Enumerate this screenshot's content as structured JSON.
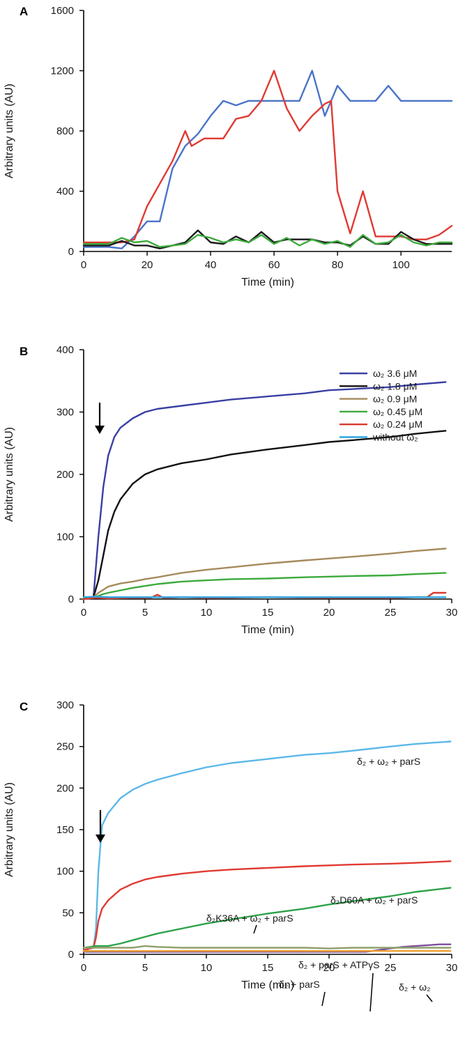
{
  "chart_data": [
    {
      "panel": "A",
      "type": "line",
      "ylabel": "Arbitrary units (AU)",
      "xlabel": "Time (min)",
      "xlim": [
        0,
        116
      ],
      "ylim": [
        0,
        1600
      ],
      "xticks": [
        0,
        20,
        40,
        60,
        80,
        100
      ],
      "yticks": [
        0,
        400,
        800,
        1200,
        1600
      ],
      "grid": false,
      "series": [
        {
          "color": "#4a74c9",
          "x": [
            0,
            8,
            12,
            16,
            20,
            24,
            28,
            32,
            36,
            40,
            44,
            48,
            52,
            56,
            60,
            64,
            68,
            72,
            76,
            80,
            84,
            88,
            92,
            96,
            100,
            104,
            108,
            112,
            116
          ],
          "y": [
            30,
            30,
            20,
            100,
            200,
            200,
            550,
            700,
            780,
            900,
            1000,
            970,
            1000,
            1000,
            1000,
            1000,
            1000,
            1200,
            900,
            1100,
            1000,
            1000,
            1000,
            1100,
            1000,
            1000,
            1000,
            1000,
            1000
          ]
        },
        {
          "color": "#e03a32",
          "x": [
            0,
            8,
            12,
            16,
            20,
            24,
            28,
            32,
            34,
            38,
            44,
            48,
            52,
            56,
            60,
            64,
            68,
            72,
            76,
            78,
            80,
            84,
            88,
            92,
            96,
            100,
            104,
            108,
            112,
            116
          ],
          "y": [
            60,
            60,
            60,
            80,
            300,
            450,
            600,
            800,
            700,
            750,
            750,
            880,
            900,
            1000,
            1200,
            950,
            800,
            900,
            980,
            1000,
            400,
            120,
            400,
            100,
            100,
            100,
            80,
            80,
            110,
            170
          ]
        },
        {
          "color": "#1a1a1a",
          "x": [
            0,
            8,
            12,
            16,
            20,
            24,
            28,
            32,
            36,
            40,
            44,
            48,
            52,
            56,
            60,
            64,
            68,
            72,
            76,
            80,
            84,
            88,
            92,
            96,
            100,
            104,
            108,
            112,
            116
          ],
          "y": [
            40,
            40,
            70,
            40,
            40,
            20,
            40,
            60,
            140,
            60,
            50,
            100,
            60,
            130,
            60,
            80,
            80,
            80,
            60,
            60,
            40,
            100,
            50,
            50,
            130,
            80,
            50,
            50,
            50
          ]
        },
        {
          "color": "#3caa3c",
          "x": [
            0,
            8,
            12,
            16,
            20,
            24,
            28,
            32,
            36,
            40,
            44,
            48,
            52,
            56,
            60,
            64,
            68,
            72,
            76,
            80,
            84,
            88,
            92,
            96,
            100,
            104,
            108,
            112,
            116
          ],
          "y": [
            50,
            50,
            90,
            60,
            70,
            30,
            40,
            50,
            110,
            90,
            60,
            80,
            60,
            110,
            50,
            90,
            40,
            80,
            50,
            70,
            30,
            110,
            50,
            60,
            110,
            60,
            40,
            60,
            60
          ]
        }
      ]
    },
    {
      "panel": "B",
      "type": "line",
      "ylabel": "Arbitrary units (AU)",
      "xlabel": "Time (min)",
      "xlim": [
        0,
        30
      ],
      "ylim": [
        0,
        400
      ],
      "xticks": [
        0,
        5,
        10,
        15,
        20,
        25,
        30
      ],
      "yticks": [
        0,
        100,
        200,
        300,
        400
      ],
      "grid": false,
      "legend_position": "right",
      "series": [
        {
          "name": "ω₂ 3.6 μM",
          "color": "#3a3fa3",
          "x": [
            0,
            0.8,
            1.2,
            1.6,
            2,
            2.5,
            3,
            4,
            5,
            6,
            8,
            10,
            12,
            15,
            18,
            20,
            22,
            25,
            27,
            29.5
          ],
          "y": [
            0,
            3,
            100,
            180,
            230,
            260,
            275,
            290,
            300,
            305,
            310,
            315,
            320,
            325,
            330,
            335,
            337,
            340,
            344,
            348
          ]
        },
        {
          "name": "ω₂ 1.8 μM",
          "color": "#111111",
          "x": [
            0,
            0.8,
            1.2,
            1.6,
            2,
            2.5,
            3,
            4,
            5,
            6,
            8,
            10,
            12,
            15,
            18,
            20,
            22,
            25,
            27,
            29.5
          ],
          "y": [
            0,
            3,
            30,
            70,
            110,
            140,
            160,
            185,
            200,
            208,
            218,
            224,
            232,
            240,
            247,
            252,
            255,
            260,
            265,
            270
          ]
        },
        {
          "name": "ω₂ 0.9 μM",
          "color": "#a58a5c",
          "x": [
            0,
            0.8,
            1.2,
            1.6,
            2,
            3,
            4,
            5,
            6,
            8,
            10,
            12,
            15,
            18,
            20,
            22,
            25,
            27,
            29.5
          ],
          "y": [
            0,
            3,
            10,
            15,
            20,
            25,
            28,
            32,
            35,
            42,
            47,
            51,
            57,
            62,
            65,
            68,
            73,
            77,
            81
          ]
        },
        {
          "name": "ω₂ 0.45 μM",
          "color": "#3caa3c",
          "x": [
            0,
            0.8,
            1.2,
            1.6,
            2,
            3,
            4,
            5,
            6,
            8,
            10,
            12,
            15,
            18,
            20,
            22,
            25,
            27,
            29.5
          ],
          "y": [
            0,
            2,
            5,
            8,
            10,
            14,
            18,
            21,
            24,
            28,
            30,
            32,
            33,
            35,
            36,
            37,
            38,
            40,
            42
          ]
        },
        {
          "name": "ω₂ 0.24 μM",
          "color": "#d93a2e",
          "x": [
            0,
            1,
            2,
            4,
            5.5,
            6,
            6.5,
            8,
            10,
            15,
            20,
            25,
            27,
            28,
            28.5,
            29.5
          ],
          "y": [
            0,
            2,
            1,
            2,
            2,
            7,
            2,
            3,
            2,
            3,
            2,
            2,
            3,
            3,
            10,
            10
          ]
        },
        {
          "name": "without ω₂",
          "color": "#2aa5e0",
          "x": [
            0,
            1,
            2,
            5,
            10,
            15,
            20,
            25,
            29.5
          ],
          "y": [
            3,
            4,
            3,
            3,
            3,
            3,
            3,
            3,
            3
          ]
        }
      ]
    },
    {
      "panel": "C",
      "type": "line",
      "ylabel": "Arbitrary units (AU)",
      "xlabel": "Time (min)",
      "xlim": [
        0,
        30
      ],
      "ylim": [
        0,
        300
      ],
      "xticks": [
        0,
        5,
        10,
        15,
        20,
        25,
        30
      ],
      "yticks": [
        0,
        50,
        100,
        150,
        200,
        250,
        300
      ],
      "grid": false,
      "series": [
        {
          "color": "#5bb8e8",
          "x": [
            0,
            0.8,
            1.0,
            1.2,
            1.5,
            2,
            3,
            4,
            5,
            6,
            8,
            10,
            12,
            15,
            18,
            20,
            22,
            25,
            27,
            29.9
          ],
          "y": [
            5,
            8,
            30,
            100,
            155,
            170,
            188,
            198,
            205,
            210,
            218,
            225,
            230,
            235,
            240,
            242,
            245,
            250,
            253,
            256
          ]
        },
        {
          "color": "#e03a32",
          "x": [
            0,
            0.8,
            1.0,
            1.2,
            1.5,
            2,
            3,
            4,
            5,
            6,
            8,
            10,
            12,
            15,
            18,
            20,
            22,
            25,
            27,
            29.9
          ],
          "y": [
            5,
            8,
            20,
            40,
            55,
            65,
            78,
            85,
            90,
            93,
            97,
            100,
            102,
            104,
            106,
            107,
            108,
            109,
            110,
            112
          ]
        },
        {
          "color": "#2ea24a",
          "x": [
            0,
            1,
            1.5,
            2,
            3,
            4,
            5,
            6,
            8,
            10,
            12,
            15,
            18,
            20,
            22,
            25,
            27,
            29.9
          ],
          "y": [
            8,
            10,
            10,
            10,
            13,
            17,
            21,
            25,
            31,
            37,
            42,
            49,
            55,
            60,
            64,
            70,
            75,
            80
          ]
        },
        {
          "color": "#7b4fa0",
          "x": [
            0,
            2,
            5,
            8,
            10,
            15,
            20,
            22,
            23,
            24,
            25,
            26,
            27,
            28,
            29,
            29.9
          ],
          "y": [
            3,
            3,
            3,
            3,
            3,
            3,
            3,
            3,
            3,
            5,
            7,
            9,
            10,
            11,
            12,
            12
          ]
        },
        {
          "color": "#8fa06a",
          "x": [
            0,
            2,
            4,
            5,
            6,
            8,
            10,
            12,
            15,
            18,
            20,
            22,
            25,
            27,
            29.9
          ],
          "y": [
            8,
            8,
            8,
            10,
            9,
            8,
            8,
            8,
            8,
            8,
            7,
            8,
            8,
            8,
            8
          ]
        },
        {
          "color": "#f0a030",
          "x": [
            0,
            5,
            10,
            15,
            20,
            25,
            29.9
          ],
          "y": [
            4,
            4,
            4,
            4,
            4,
            4,
            4
          ]
        }
      ]
    }
  ],
  "panels": [
    {
      "label": "A"
    },
    {
      "label": "B",
      "legend": [
        "ω₂ 3.6 μM",
        "ω₂ 1.8 μM",
        "ω₂ 0.9 μM",
        "ω₂ 0.45 μM",
        "ω₂ 0.24 μM",
        "without ω₂"
      ]
    },
    {
      "label": "C",
      "annotations": [
        "δ₂ + ω₂ + parS",
        "δ₂D60A + ω₂ + parS",
        "δ₂K36A + ω₂ + parS",
        "δ₂ + parS + ATPγS",
        "δ₂ + parS",
        "δ₂ + ω₂"
      ]
    }
  ]
}
